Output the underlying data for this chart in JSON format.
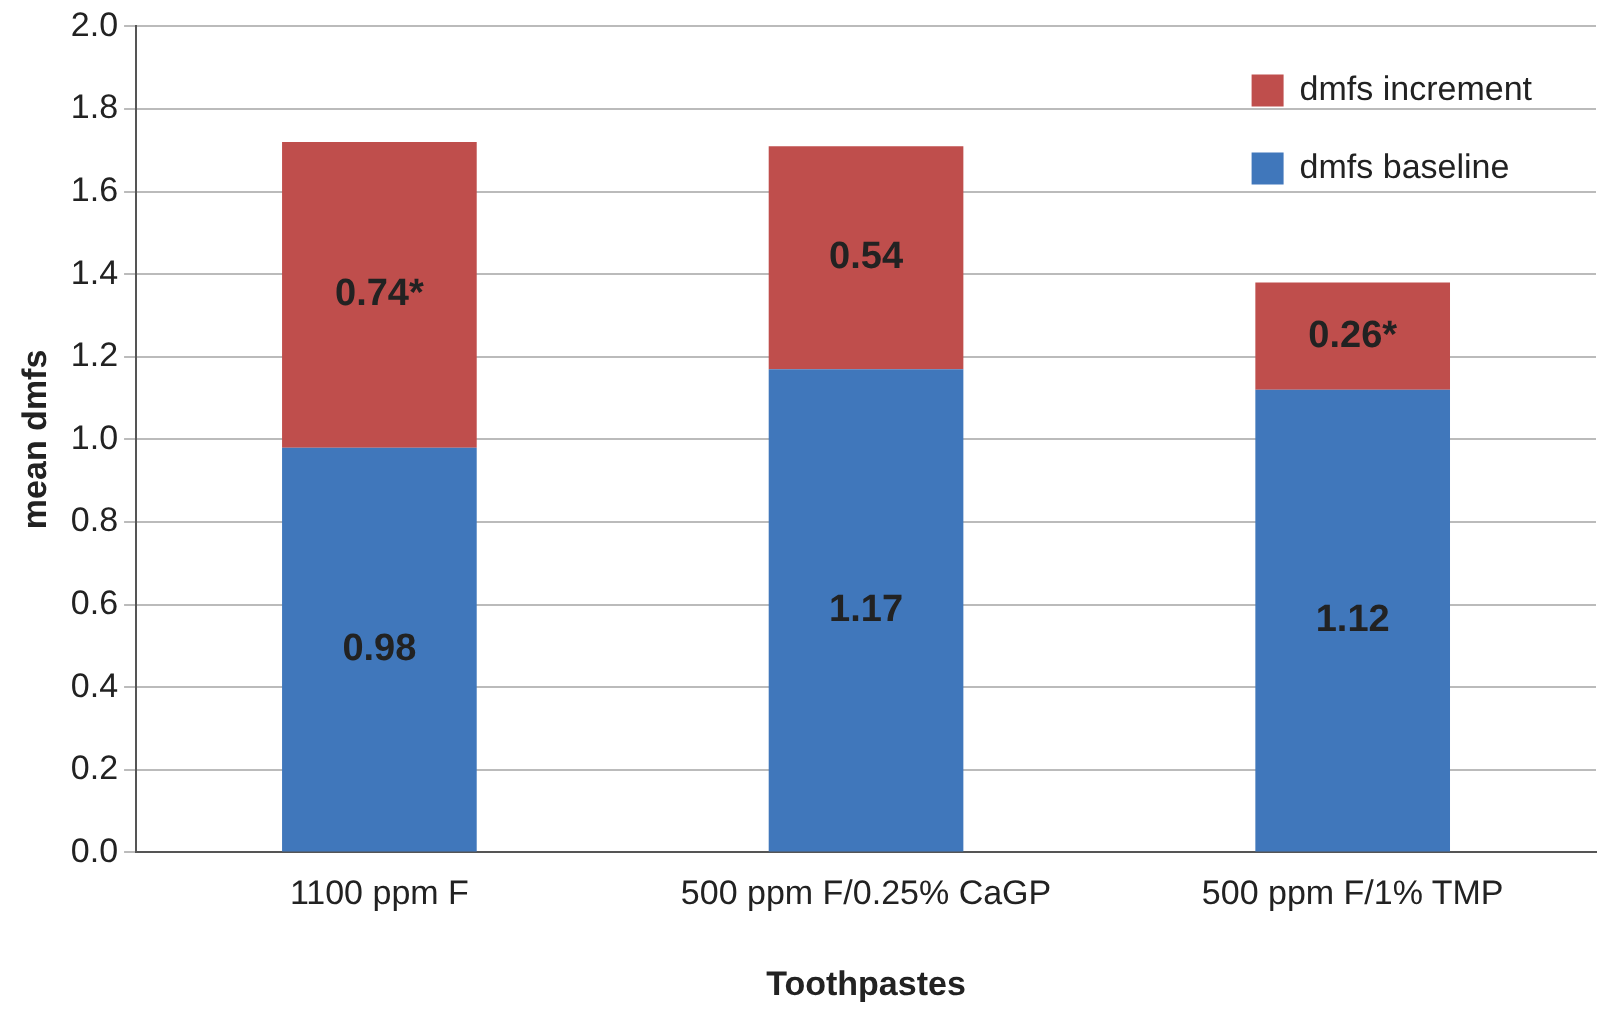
{
  "chart_data": {
    "type": "bar",
    "stacked": true,
    "xlabel": "Toothpastes",
    "ylabel": "mean dmfs",
    "categories": [
      "1100 ppm F",
      "500 ppm F/0.25% CaGP",
      "500 ppm F/1% TMP"
    ],
    "series": [
      {
        "name": "dmfs baseline",
        "color": "#4077bb",
        "values": [
          0.98,
          1.17,
          1.12
        ],
        "value_labels": [
          "0.98",
          "1.17",
          "1.12"
        ]
      },
      {
        "name": "dmfs increment",
        "color": "#bf4e4c",
        "values": [
          0.74,
          0.54,
          0.26
        ],
        "value_labels": [
          "0.74*",
          "0.54",
          "0.26*"
        ]
      }
    ],
    "ylim": [
      0,
      2
    ],
    "yticks": [
      {
        "value": 0,
        "label": "0.0"
      },
      {
        "value": 0.2,
        "label": "0.2"
      },
      {
        "value": 0.4,
        "label": "0.4"
      },
      {
        "value": 0.6,
        "label": "0.6"
      },
      {
        "value": 0.8,
        "label": "0.8"
      },
      {
        "value": 1,
        "label": "1.0"
      },
      {
        "value": 1.2,
        "label": "1.2"
      },
      {
        "value": 1.4,
        "label": "1.4"
      },
      {
        "value": 1.6,
        "label": "1.6"
      },
      {
        "value": 1.8,
        "label": "1.8"
      },
      {
        "value": 2,
        "label": "2.0"
      }
    ],
    "grid": "y",
    "legend": "top right"
  }
}
